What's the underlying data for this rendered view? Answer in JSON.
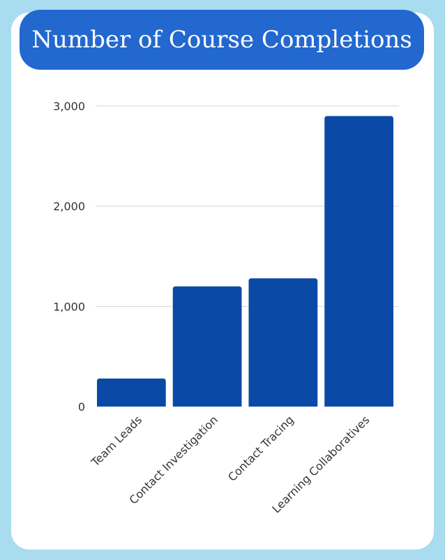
{
  "chart_data": {
    "type": "bar",
    "title": "Number of Course Completions",
    "categories": [
      "Team Leads",
      "Contact Investigation",
      "Contact Tracing",
      "Learning Collaboratives"
    ],
    "values": [
      280,
      1200,
      1280,
      2900
    ],
    "ylim": [
      0,
      3000
    ],
    "yticks": [
      "0",
      "1,000",
      "2,000",
      "3,000"
    ],
    "ytick_values": [
      0,
      1000,
      2000,
      3000
    ],
    "grid": true,
    "bar_color": "#0a4aa6",
    "title_bg_color": "#2268cf",
    "page_bg_color": "#a9dcef"
  }
}
